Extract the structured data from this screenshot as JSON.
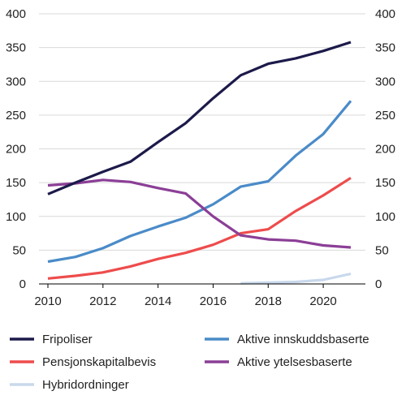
{
  "chart_data": {
    "type": "line",
    "title": "",
    "xlabel": "",
    "ylabel": "",
    "xlim": [
      2010,
      2021
    ],
    "ylim": [
      0,
      400
    ],
    "x_ticks": [
      2010,
      2012,
      2014,
      2016,
      2018,
      2020
    ],
    "y_ticks": [
      0,
      50,
      100,
      150,
      200,
      250,
      300,
      350,
      400
    ],
    "grid": "horizontal",
    "legend_position": "bottom",
    "series": [
      {
        "name": "Fripoliser",
        "color": "#1c1a4a",
        "x": [
          2010,
          2011,
          2012,
          2013,
          2014,
          2015,
          2016,
          2017,
          2018,
          2019,
          2020,
          2021
        ],
        "values": [
          133,
          150,
          166,
          181,
          210,
          238,
          275,
          309,
          326,
          334,
          345,
          358
        ]
      },
      {
        "name": "Aktive innskuddsbaserte",
        "color": "#4a8bc8",
        "x": [
          2010,
          2011,
          2012,
          2013,
          2014,
          2015,
          2016,
          2017,
          2018,
          2019,
          2020,
          2021
        ],
        "values": [
          33,
          40,
          53,
          71,
          85,
          98,
          118,
          144,
          152,
          190,
          222,
          271
        ]
      },
      {
        "name": "Pensjonskapitalbevis",
        "color": "#ee4c4c",
        "x": [
          2010,
          2011,
          2012,
          2013,
          2014,
          2015,
          2016,
          2017,
          2018,
          2019,
          2020,
          2021
        ],
        "values": [
          8,
          12,
          17,
          26,
          37,
          46,
          58,
          75,
          81,
          108,
          131,
          157
        ]
      },
      {
        "name": "Aktive ytelsesbaserte",
        "color": "#8b3f96",
        "x": [
          2010,
          2011,
          2012,
          2013,
          2014,
          2015,
          2016,
          2017,
          2018,
          2019,
          2020,
          2021
        ],
        "values": [
          146,
          149,
          154,
          151,
          142,
          134,
          100,
          72,
          66,
          64,
          57,
          54
        ]
      },
      {
        "name": "Hybridordninger",
        "color": "#c8d8ec",
        "x": [
          2017,
          2018,
          2019,
          2020,
          2021
        ],
        "values": [
          1,
          2,
          3,
          6,
          15
        ]
      }
    ]
  }
}
